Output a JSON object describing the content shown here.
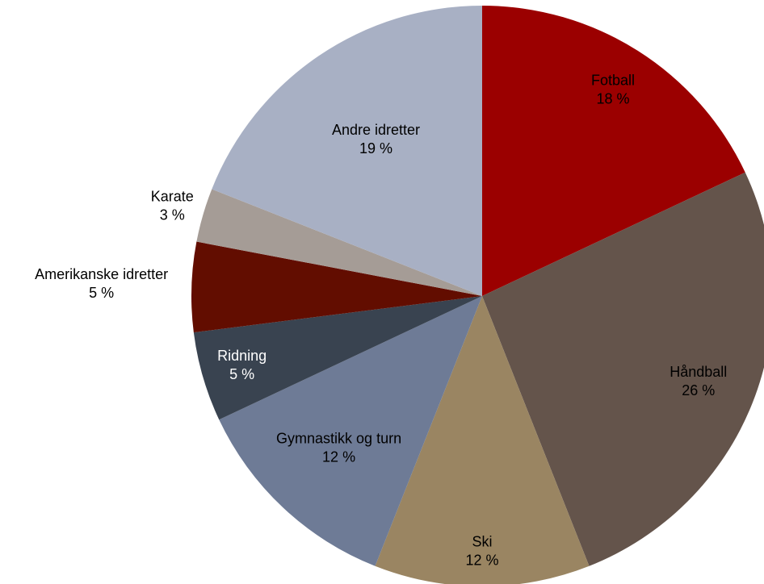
{
  "chart_data": {
    "type": "pie",
    "categories": [
      "Fotball",
      "Håndball",
      "Ski",
      "Gymnastikk og turn",
      "Ridning",
      "Amerikanske idretter",
      "Karate",
      "Andre idretter"
    ],
    "values": [
      18,
      26,
      12,
      12,
      5,
      5,
      3,
      19
    ],
    "value_labels": [
      "18 %",
      "26 %",
      "12 %",
      "12 %",
      "5 %",
      "5 %",
      "3 %",
      "19 %"
    ],
    "colors": [
      "#9b0000",
      "#64544b",
      "#9a8562",
      "#6e7b96",
      "#394350",
      "#620d00",
      "#a59c96",
      "#a8b0c4"
    ]
  }
}
